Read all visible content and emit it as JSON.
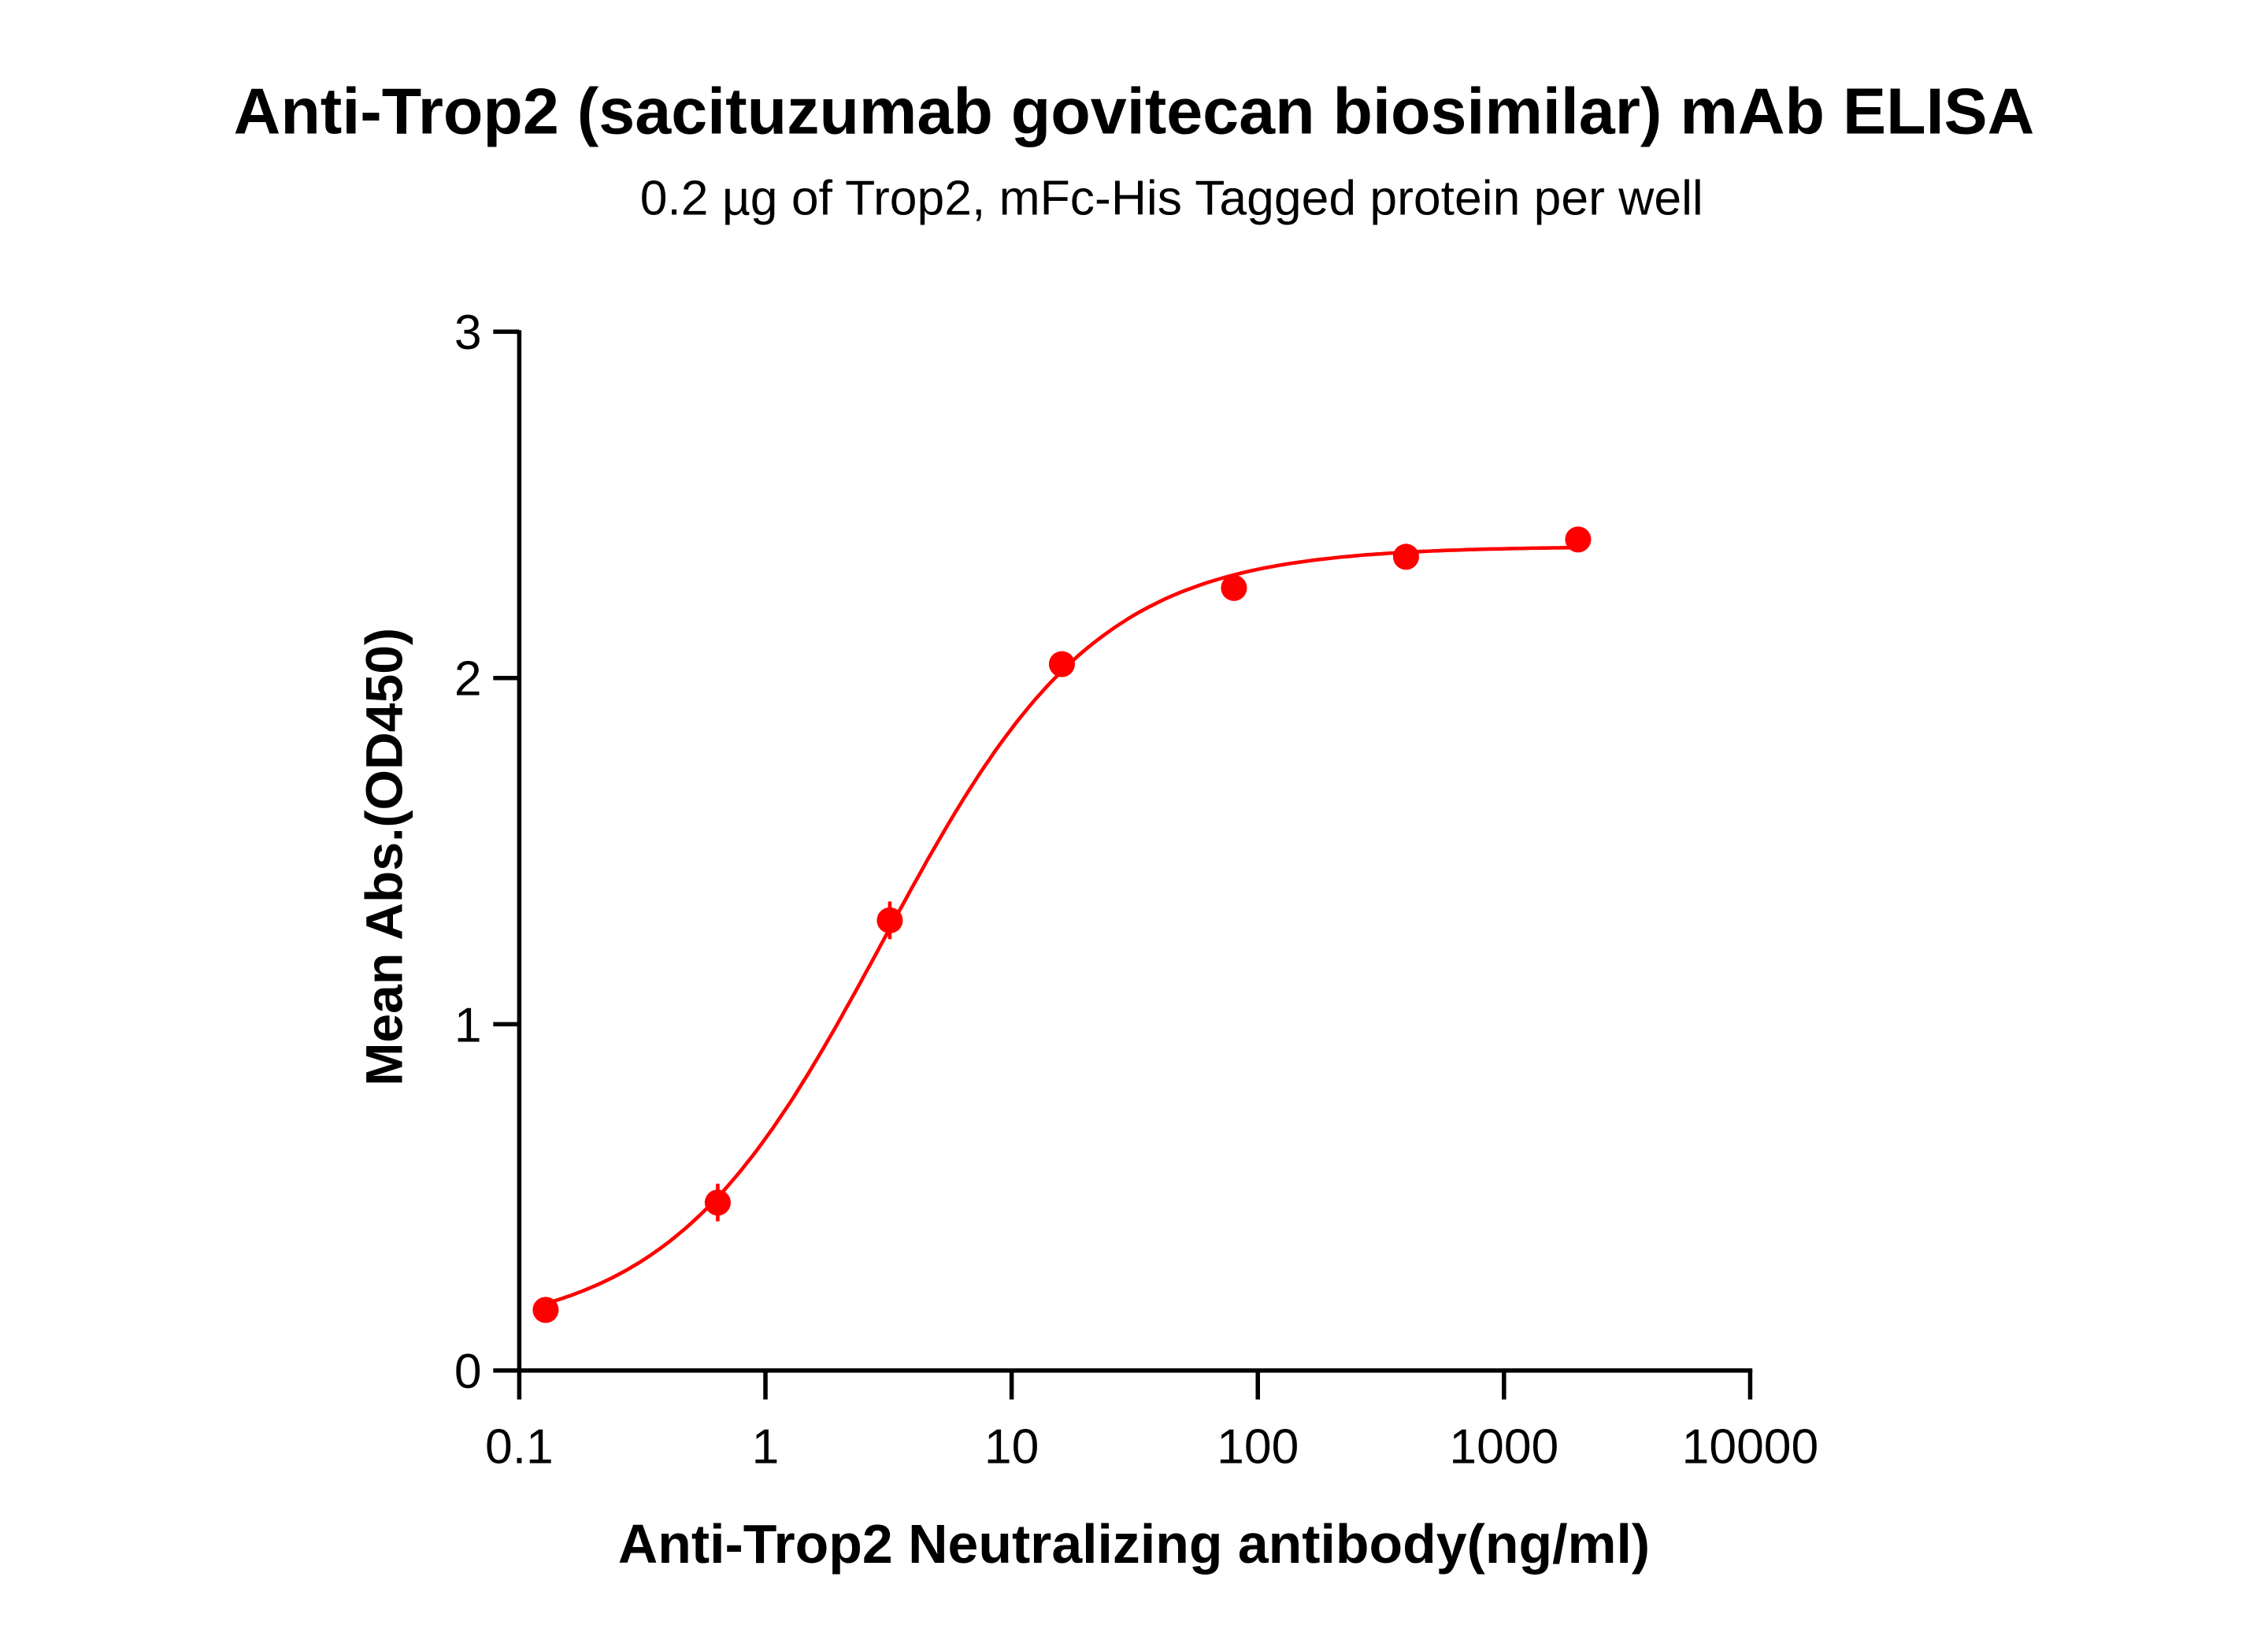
{
  "chart_data": {
    "type": "scatter",
    "title": "Anti-Trop2 (sacituzumab govitecan biosimilar) mAb ELISA",
    "subtitle": "0.2 µg of Trop2, mFc-His Tagged protein per well",
    "xlabel": "Anti-Trop2 Neutralizing antibody(ng/ml)",
    "ylabel": "Mean Abs.(OD450)",
    "xscale": "log",
    "xlim": [
      0.1,
      10000
    ],
    "ylim": [
      0,
      3
    ],
    "xticks": [
      "0.1",
      "1",
      "10",
      "100",
      "1000",
      "10000"
    ],
    "yticks": [
      "0",
      "1",
      "2",
      "3"
    ],
    "grid": false,
    "color": "#ff0000",
    "x": [
      0.128,
      0.64,
      3.2,
      16,
      80,
      400,
      2000
    ],
    "y": [
      0.175,
      0.485,
      1.3,
      2.04,
      2.26,
      2.35,
      2.4
    ],
    "fit": {
      "model": "4PL",
      "bottom": 0.1,
      "top": 2.38,
      "ec50": 3.0,
      "hill": 1.0
    }
  }
}
